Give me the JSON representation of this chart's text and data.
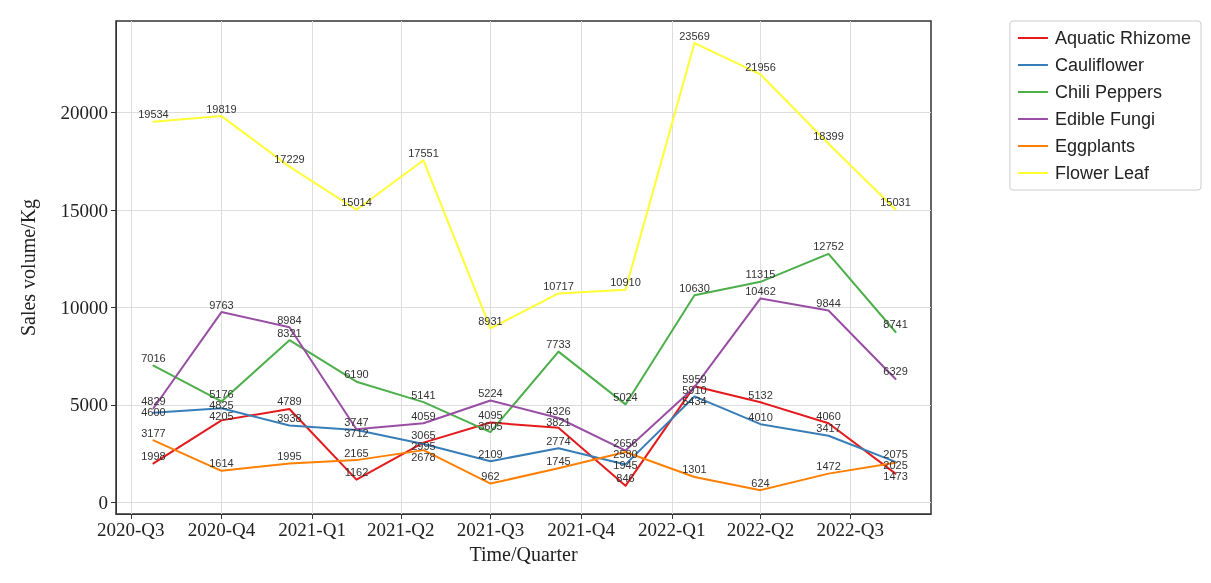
{
  "chart_data": {
    "type": "line",
    "xlabel": "Time/Quarter",
    "ylabel": "Sales volume/Kg",
    "x": [
      "2020-07-24",
      "2020-10-01",
      "2020-12-09",
      "2021-02-15",
      "2021-04-24",
      "2021-07-01",
      "2021-09-08",
      "2021-11-15",
      "2022-01-24",
      "2022-04-01",
      "2022-06-09",
      "2022-08-16"
    ],
    "xlim": [
      "2020-06-16",
      "2022-09-21"
    ],
    "xticks": [
      {
        "value": "2020-07-01",
        "label": "2020-Q3"
      },
      {
        "value": "2020-10-01",
        "label": "2020-Q4"
      },
      {
        "value": "2021-01-01",
        "label": "2021-Q1"
      },
      {
        "value": "2021-04-01",
        "label": "2021-Q2"
      },
      {
        "value": "2021-07-01",
        "label": "2021-Q3"
      },
      {
        "value": "2021-10-01",
        "label": "2021-Q4"
      },
      {
        "value": "2022-01-01",
        "label": "2022-Q1"
      },
      {
        "value": "2022-04-01",
        "label": "2022-Q2"
      },
      {
        "value": "2022-07-01",
        "label": "2022-Q3"
      }
    ],
    "ylim": [
      -600,
      24700
    ],
    "yticks": [
      0,
      5000,
      10000,
      15000,
      20000
    ],
    "series": [
      {
        "name": "Aquatic Rhizome",
        "color": "#e41a1c",
        "values": [
          1998,
          4205,
          4789,
          1162,
          3065,
          4095,
          3821,
          846,
          5959,
          5132,
          4060,
          1473
        ]
      },
      {
        "name": "Cauliflower",
        "color": "#377eb8",
        "values": [
          4600,
          4825,
          3938,
          3712,
          2995,
          2109,
          2774,
          1945,
          5434,
          4010,
          3417,
          2075
        ]
      },
      {
        "name": "Chili Peppers",
        "color": "#4daf4a",
        "values": [
          7016,
          5176,
          8321,
          6190,
          5141,
          3605,
          7733,
          5024,
          10630,
          11315,
          12752,
          8741
        ]
      },
      {
        "name": "Edible Fungi",
        "color": "#984ea3",
        "values": [
          4829,
          9763,
          8984,
          3747,
          4059,
          5224,
          4326,
          2656,
          5910,
          10462,
          9844,
          6329
        ]
      },
      {
        "name": "Eggplants",
        "color": "#ff7f00",
        "values": [
          3177,
          1614,
          1995,
          2165,
          2678,
          962,
          1745,
          2580,
          1301,
          624,
          1472,
          2025
        ]
      },
      {
        "name": "Flower Leaf",
        "color": "#ffff33",
        "values": [
          19534,
          19819,
          17229,
          15014,
          17551,
          8931,
          10717,
          10910,
          23569,
          21956,
          18399,
          15031
        ]
      }
    ],
    "grid": true,
    "legend": "top right",
    "marker": "none",
    "line_style": "solid",
    "data_labels": true
  }
}
